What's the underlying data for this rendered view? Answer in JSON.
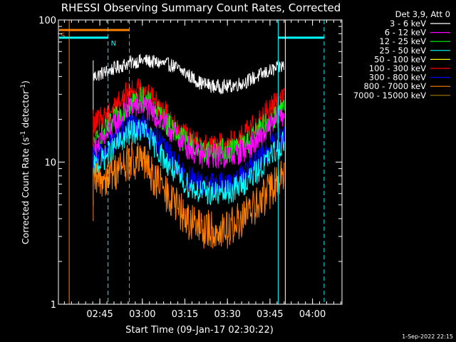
{
  "title": "RHESSI Observing Summary Count Rates, Corrected",
  "ylabel": "Corrected Count Rate (s",
  "ylabel_sup": "-1",
  "ylabel_mid": " detector",
  "ylabel_sup2": "-1",
  "ylabel_end": ")",
  "xlabel": "Start Time (09-Jan-17 02:30:22)",
  "footer_date": "1-Sep-2022 22:15",
  "legend_header": "Det 3,9, Att 0",
  "chart_data": {
    "type": "line",
    "x_unit": "minutes after 02:30:22",
    "xlim": [
      0,
      100
    ],
    "ylim": [
      1,
      100
    ],
    "yscale": "log",
    "x_ticks": [
      {
        "label": "02:45",
        "value": 14.6
      },
      {
        "label": "03:00",
        "value": 29.6
      },
      {
        "label": "03:15",
        "value": 44.6
      },
      {
        "label": "03:30",
        "value": 59.6
      },
      {
        "label": "03:45",
        "value": 74.6
      },
      {
        "label": "04:00",
        "value": 89.6
      }
    ],
    "y_ticks": [
      {
        "label": "100",
        "value": 100
      },
      {
        "label": "10",
        "value": 10
      },
      {
        "label": "1",
        "value": 1
      }
    ],
    "series": [
      {
        "name": "3 - 6 keV",
        "color": "#ffffff",
        "values": [
          [
            12.4,
            40
          ],
          [
            25.0,
            50
          ],
          [
            30,
            52
          ],
          [
            40,
            48
          ],
          [
            45,
            42
          ],
          [
            50,
            36
          ],
          [
            55,
            34
          ],
          [
            60,
            34
          ],
          [
            65,
            36
          ],
          [
            70,
            40
          ],
          [
            75,
            44
          ],
          [
            79.6,
            48
          ]
        ]
      },
      {
        "name": "6 - 12 keV",
        "color": "#ff00ff",
        "values": [
          [
            12.4,
            12
          ],
          [
            25.0,
            24
          ],
          [
            30,
            25
          ],
          [
            38,
            18
          ],
          [
            45,
            13
          ],
          [
            50,
            11
          ],
          [
            55,
            11
          ],
          [
            60,
            11
          ],
          [
            65,
            12
          ],
          [
            70,
            14
          ],
          [
            75,
            18
          ],
          [
            79.6,
            22
          ]
        ]
      },
      {
        "name": "12 - 25 keV",
        "color": "#00ff00",
        "values": [
          [
            12.4,
            13
          ],
          [
            25.0,
            26
          ],
          [
            30,
            28
          ],
          [
            38,
            19
          ],
          [
            45,
            14
          ],
          [
            50,
            12
          ],
          [
            55,
            12
          ],
          [
            60,
            12
          ],
          [
            65,
            13
          ],
          [
            70,
            16
          ],
          [
            75,
            20
          ],
          [
            79.6,
            24
          ]
        ]
      },
      {
        "name": "25 - 50 keV",
        "color": "#00ffff",
        "values": [
          [
            12.4,
            9
          ],
          [
            25.0,
            16
          ],
          [
            30,
            17
          ],
          [
            38,
            10
          ],
          [
            45,
            7
          ],
          [
            50,
            6.2
          ],
          [
            55,
            6
          ],
          [
            60,
            6.1
          ],
          [
            65,
            7
          ],
          [
            70,
            8.5
          ],
          [
            75,
            11
          ],
          [
            79.6,
            14
          ]
        ]
      },
      {
        "name": "50 - 100 keV",
        "color": "#ffff00",
        "values": []
      },
      {
        "name": "100 - 300 keV",
        "color": "#ff0000",
        "values": [
          [
            12.4,
            18
          ],
          [
            25.0,
            31
          ],
          [
            30,
            33
          ],
          [
            38,
            22
          ],
          [
            45,
            15
          ],
          [
            50,
            13
          ],
          [
            55,
            13
          ],
          [
            60,
            13.5
          ],
          [
            65,
            15
          ],
          [
            70,
            19
          ],
          [
            75,
            24
          ],
          [
            79.6,
            30
          ]
        ]
      },
      {
        "name": "300 - 800 keV",
        "color": "#0000ff",
        "values": [
          [
            12.4,
            10
          ],
          [
            25.0,
            18
          ],
          [
            30,
            18
          ],
          [
            38,
            12
          ],
          [
            45,
            8
          ],
          [
            50,
            7
          ],
          [
            55,
            7
          ],
          [
            60,
            7
          ],
          [
            65,
            8
          ],
          [
            70,
            10
          ],
          [
            75,
            13
          ],
          [
            79.6,
            16
          ]
        ]
      },
      {
        "name": "800 - 7000 keV",
        "color": "#ff8000",
        "values": [
          [
            12.4,
            7
          ],
          [
            25.0,
            10
          ],
          [
            30,
            10
          ],
          [
            38,
            6
          ],
          [
            45,
            4
          ],
          [
            50,
            3.4
          ],
          [
            55,
            3.3
          ],
          [
            60,
            3.4
          ],
          [
            65,
            4
          ],
          [
            70,
            5
          ],
          [
            75,
            6.5
          ],
          [
            79.6,
            8
          ]
        ]
      },
      {
        "name": "7000 - 15000 keV",
        "color": "#aa7a00",
        "values": []
      }
    ],
    "flags": [
      {
        "label": "S",
        "color": "#ff8000",
        "x_start": 0,
        "x_end": 25.0,
        "y_level": 85
      },
      {
        "label": "N",
        "color": "#00ffff",
        "x_start": 0,
        "x_end": 17.5,
        "y_level": 75
      },
      {
        "label": "",
        "color": "#00ffff",
        "x_start": 77.5,
        "x_end": 93.7,
        "y_level": 75
      }
    ],
    "vlines": [
      {
        "x": 3.8,
        "color": "#ff8000",
        "style": "solid"
      },
      {
        "x": 17.5,
        "color": "#00ffff",
        "style": "dashed"
      },
      {
        "x": 25.0,
        "color": "#ff8000",
        "style": "dashed"
      },
      {
        "x": 77.5,
        "color": "#00ffff",
        "style": "solid"
      },
      {
        "x": 80.0,
        "color": "#ffffff",
        "style": "solid"
      },
      {
        "x": 93.7,
        "color": "#00ffff",
        "style": "dashed"
      }
    ]
  }
}
